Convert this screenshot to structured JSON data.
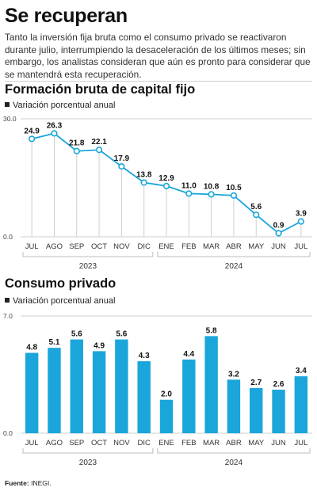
{
  "header": {
    "title": "Se recuperan",
    "intro": "Tanto la inversión fija bruta como el consumo privado se reactivaron durante julio, interrumpiendo la desaceleración de los últimos meses; sin embargo, los analistas consideran que aún es pronto para considerar que se mantendrá esta recuperación."
  },
  "charts": {
    "inversion": {
      "title": "Formación bruta de capital fijo",
      "subtitle": "Variación porcentual anual"
    },
    "consumo": {
      "title": "Consumo privado",
      "subtitle": "Variación porcentual anual"
    }
  },
  "footer": {
    "source_label": "Fuente:",
    "source_value": "INEGI."
  },
  "chart_data": [
    {
      "type": "line",
      "title": "Formación bruta de capital fijo",
      "subtitle": "Variación porcentual anual",
      "categories": [
        "JUL",
        "AGO",
        "SEP",
        "OCT",
        "NOV",
        "DIC",
        "ENE",
        "FEB",
        "MAR",
        "ABR",
        "MAY",
        "JUN",
        "JUL"
      ],
      "year_groups": [
        {
          "label": "2023",
          "span": 6
        },
        {
          "label": "2024",
          "span": 7
        }
      ],
      "values": [
        24.9,
        26.3,
        21.8,
        22.1,
        17.9,
        13.8,
        12.9,
        11.0,
        10.8,
        10.5,
        5.6,
        0.9,
        3.9
      ],
      "ylim": [
        0,
        30
      ],
      "yticks": [
        "0.0",
        "30.0"
      ],
      "grid": true,
      "color": "#1aa6db"
    },
    {
      "type": "bar",
      "title": "Consumo privado",
      "subtitle": "Variación porcentual anual",
      "categories": [
        "JUL",
        "AGO",
        "SEP",
        "OCT",
        "NOV",
        "DIC",
        "ENE",
        "FEB",
        "MAR",
        "ABR",
        "MAY",
        "JUN",
        "JUL"
      ],
      "year_groups": [
        {
          "label": "2023",
          "span": 6
        },
        {
          "label": "2024",
          "span": 7
        }
      ],
      "values": [
        4.8,
        5.1,
        5.6,
        4.9,
        5.6,
        4.3,
        2.0,
        4.4,
        5.8,
        3.2,
        2.7,
        2.6,
        3.4
      ],
      "ylim": [
        0,
        7
      ],
      "yticks": [
        "0.0",
        "7.0"
      ],
      "grid": true,
      "color": "#1aa6db"
    }
  ]
}
